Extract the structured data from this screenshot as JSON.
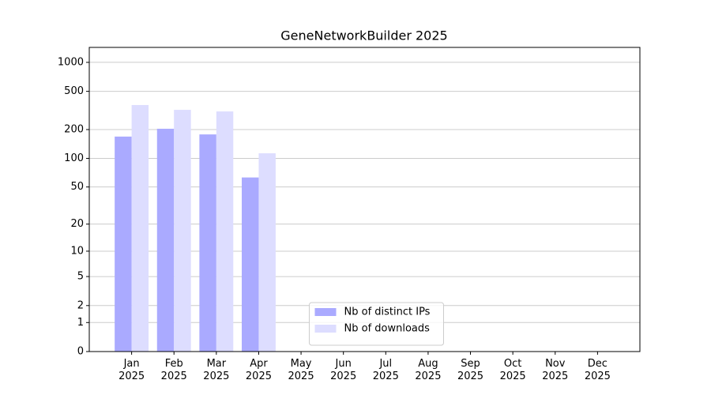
{
  "chart_data": {
    "type": "bar",
    "title": "GeneNetworkBuilder 2025",
    "categories": [
      "Jan\n2025",
      "Feb\n2025",
      "Mar\n2025",
      "Apr\n2025",
      "May\n2025",
      "Jun\n2025",
      "Jul\n2025",
      "Aug\n2025",
      "Sep\n2025",
      "Oct\n2025",
      "Nov\n2025",
      "Dec\n2025"
    ],
    "series": [
      {
        "name": "Nb of distinct IPs",
        "color": "#aaaaff",
        "values": [
          169,
          204,
          178,
          63,
          null,
          null,
          null,
          null,
          null,
          null,
          null,
          null
        ]
      },
      {
        "name": "Nb of downloads",
        "color": "#ddddff",
        "values": [
          360,
          321,
          309,
          113,
          null,
          null,
          null,
          null,
          null,
          null,
          null,
          null
        ]
      }
    ],
    "yscale": "log1p",
    "ylim": [
      0,
      1430
    ],
    "yticks": [
      0,
      1,
      2,
      5,
      10,
      20,
      50,
      100,
      200,
      500,
      1000
    ],
    "grid": true,
    "legend": "lower center"
  }
}
